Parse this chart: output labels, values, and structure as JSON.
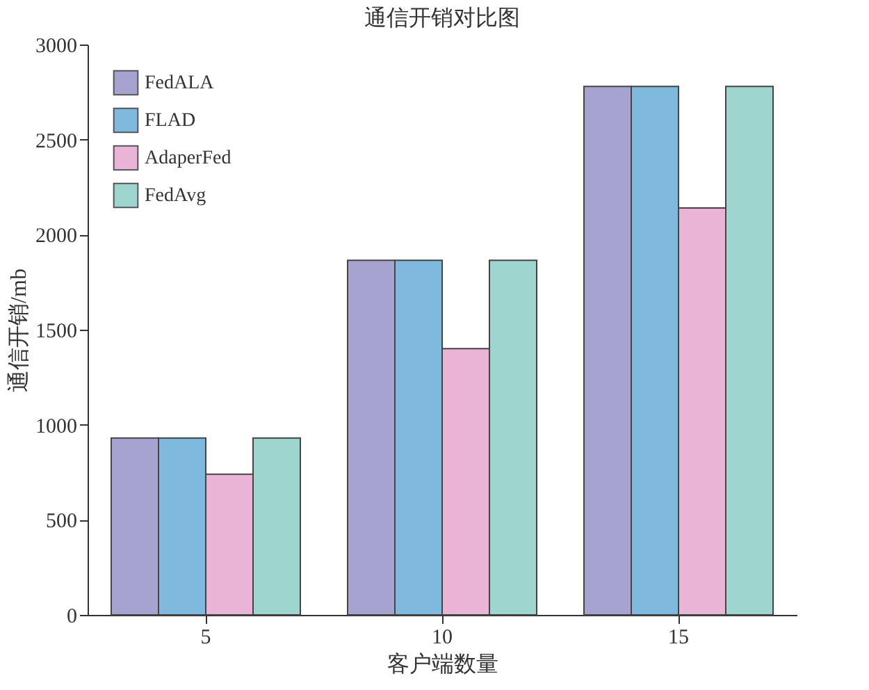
{
  "chart_data": {
    "type": "bar",
    "title": "通信开销对比图",
    "xlabel": "客户端数量",
    "ylabel": "通信开销/mb",
    "categories": [
      "5",
      "10",
      "15"
    ],
    "series": [
      {
        "name": "FedALA",
        "color": "#a7a3d0",
        "values": [
          930,
          1865,
          2780
        ]
      },
      {
        "name": "FLAD",
        "color": "#7fb9de",
        "values": [
          930,
          1865,
          2780
        ]
      },
      {
        "name": "AdaperFed",
        "color": "#e9b4d5",
        "values": [
          740,
          1400,
          2140
        ]
      },
      {
        "name": "FedAvg",
        "color": "#9fd5cf",
        "values": [
          930,
          1865,
          2780
        ]
      }
    ],
    "ylim": [
      0,
      3000
    ],
    "yticks": [
      0,
      500,
      1000,
      1500,
      2000,
      2500,
      3000
    ],
    "grid": false,
    "legend": "top left"
  }
}
